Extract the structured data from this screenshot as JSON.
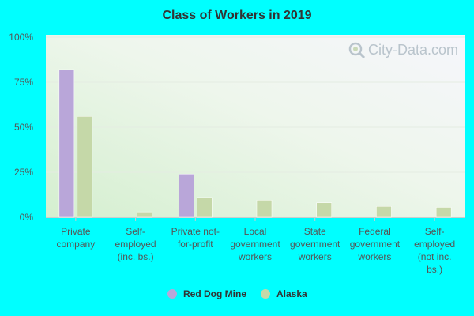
{
  "chart_data": {
    "type": "bar",
    "title": "Class of Workers in 2019",
    "categories": [
      [
        "Private",
        "company"
      ],
      [
        "Self-",
        "employed",
        "(inc. bs.)"
      ],
      [
        "Private not-",
        "for-profit"
      ],
      [
        "Local",
        "government",
        "workers"
      ],
      [
        "State",
        "government",
        "workers"
      ],
      [
        "Federal",
        "government",
        "workers"
      ],
      [
        "Self-",
        "employed",
        "(not inc.",
        "bs.)"
      ]
    ],
    "series": [
      {
        "name": "Red Dog Mine",
        "color": "#b9a6d9",
        "values": [
          82,
          0,
          24,
          0,
          0,
          0,
          0
        ]
      },
      {
        "name": "Alaska",
        "color": "#c5d8a8",
        "values": [
          56,
          3,
          11,
          9.5,
          8,
          6,
          5.5
        ]
      }
    ],
    "ylim": [
      0,
      100
    ],
    "yticks": [
      "0%",
      "25%",
      "50%",
      "75%",
      "100%"
    ],
    "ytick_values": [
      0,
      25,
      50,
      75,
      100
    ],
    "legend_position": "bottom",
    "grid": true
  },
  "watermark": {
    "text": "City-Data.com",
    "icon": "magnifier-icon"
  }
}
